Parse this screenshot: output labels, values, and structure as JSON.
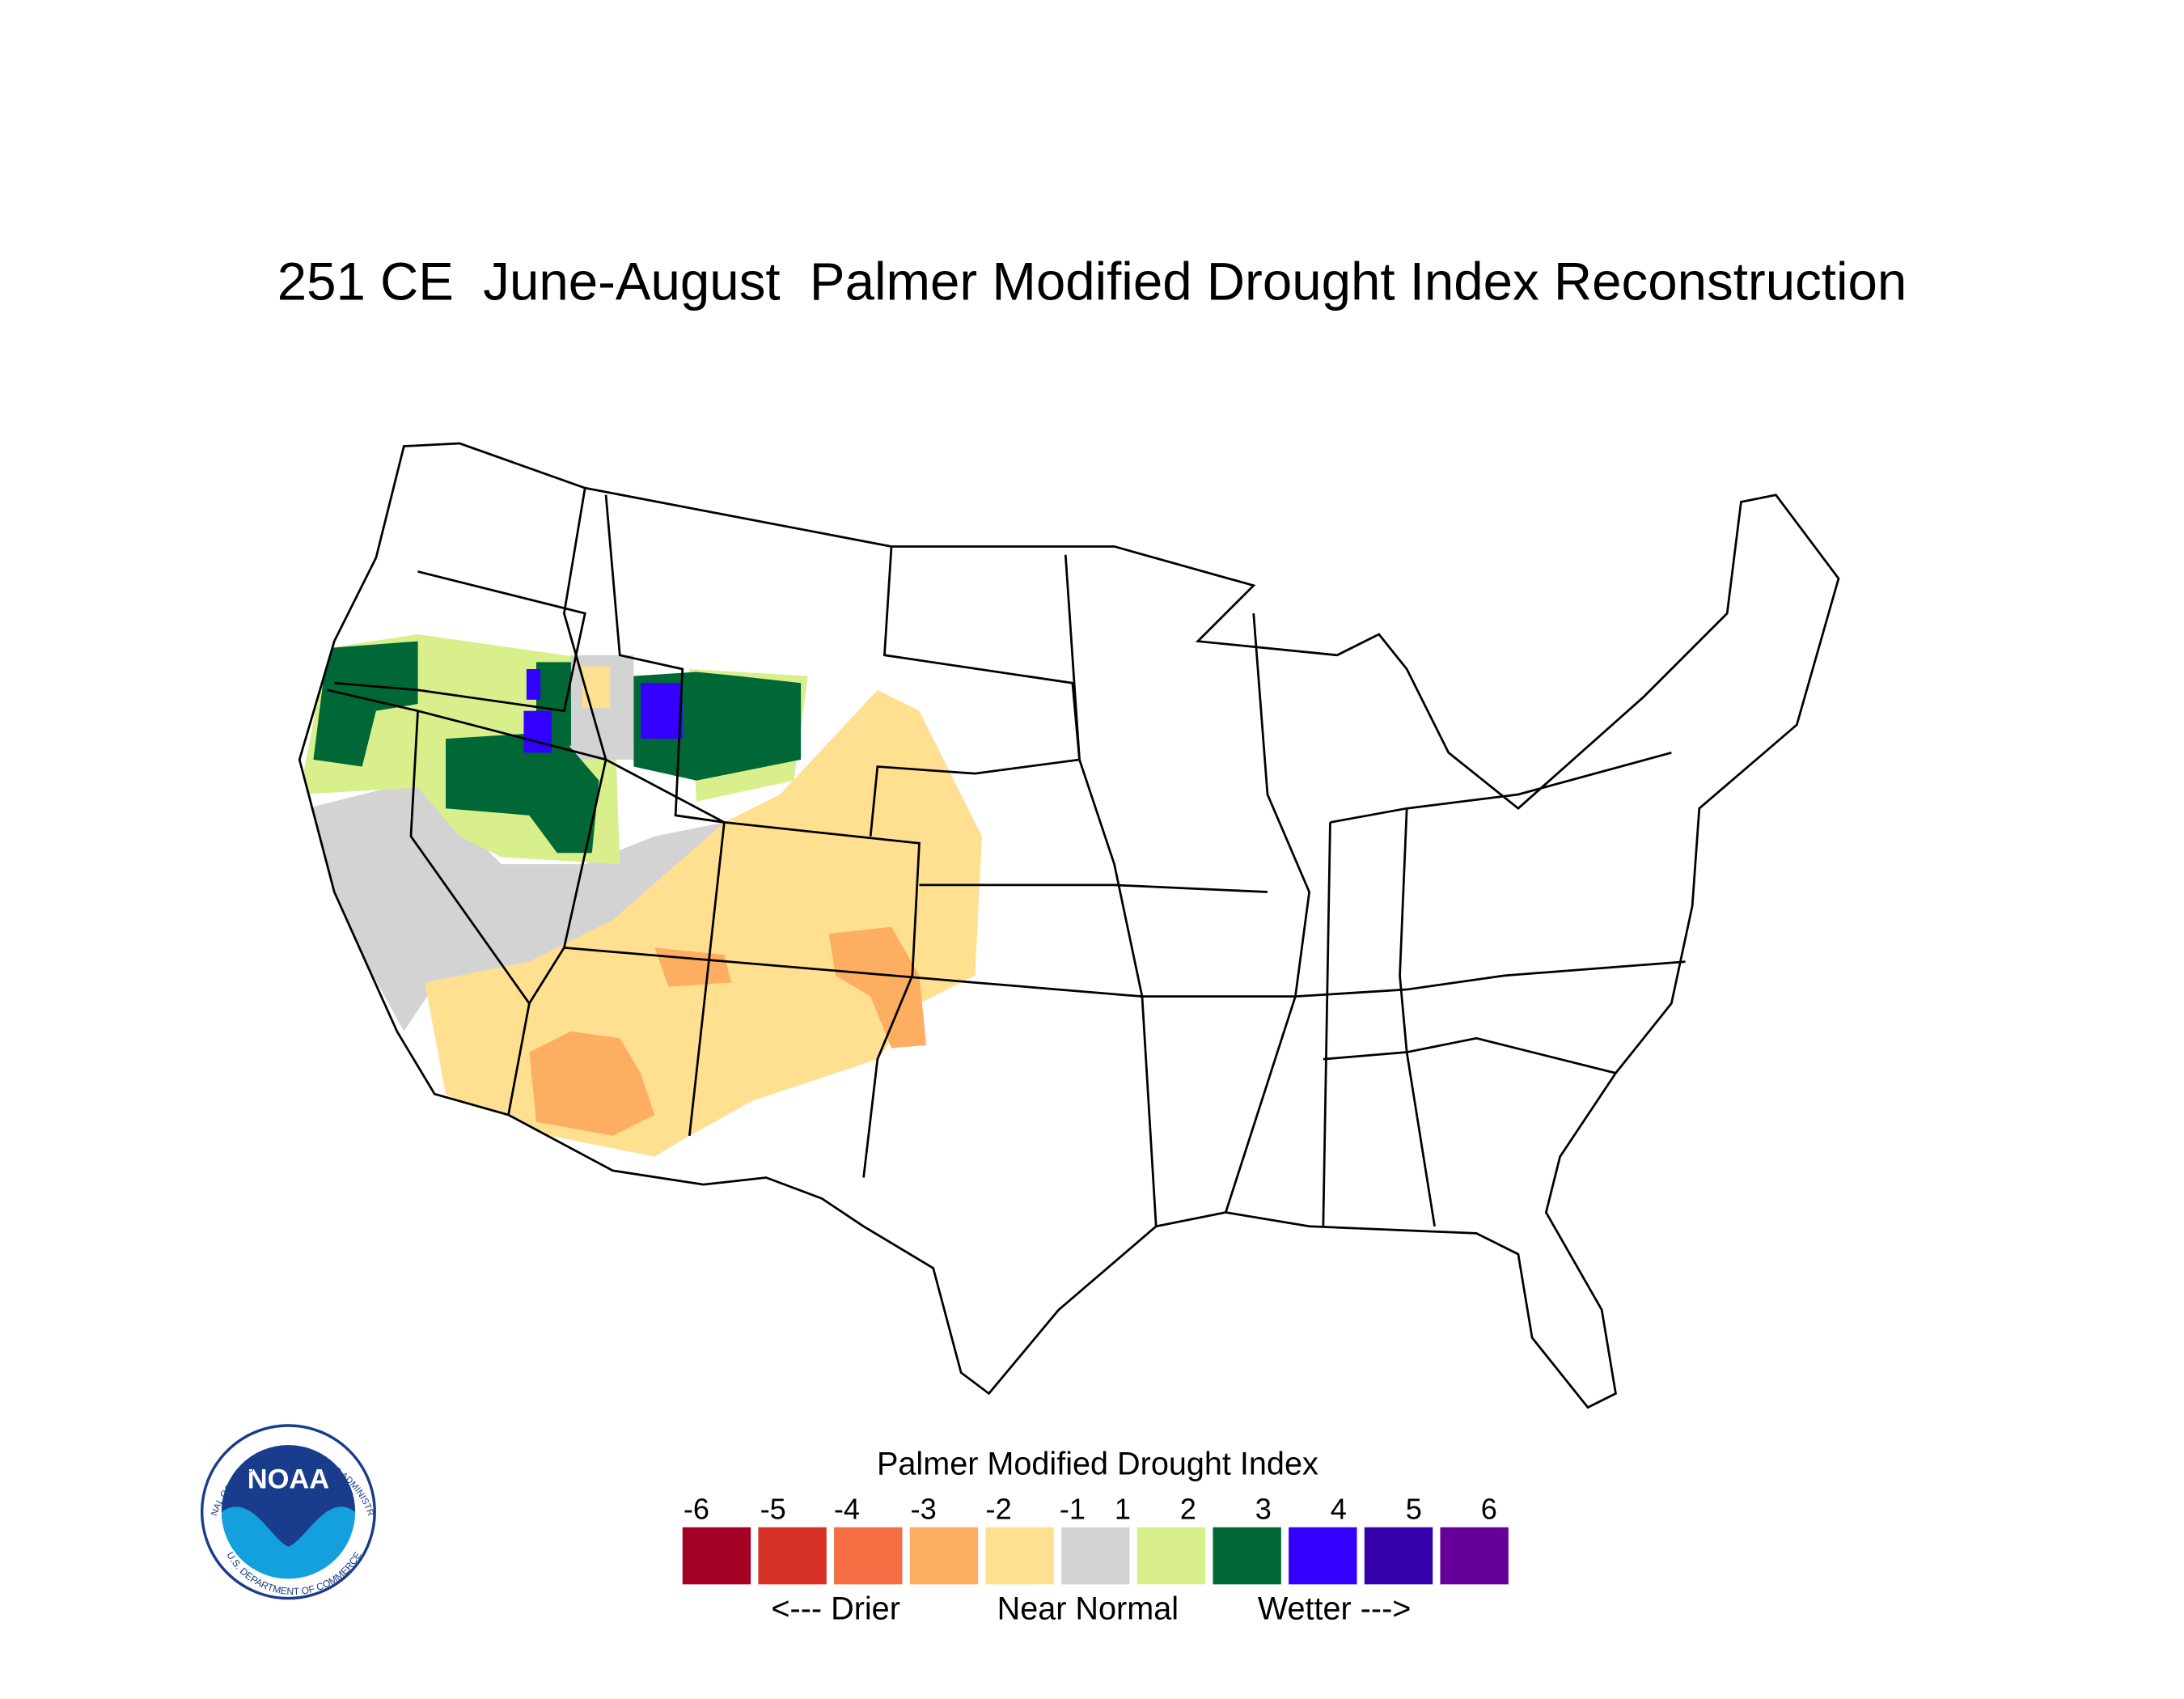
{
  "header": {
    "title": "251 CE  June-August  Palmer Modified Drought Index Reconstruction"
  },
  "legend": {
    "title": "Palmer Modified Drought Index",
    "ticks": [
      "-6",
      "-5",
      "-4",
      "-3",
      "-2",
      "-1",
      "1",
      "2",
      "3",
      "4",
      "5",
      "6"
    ],
    "colors": [
      "#a50026",
      "#d73027",
      "#f46d43",
      "#fdae61",
      "#fee090",
      "#d3d3d3",
      "#d9ef8b",
      "#006837",
      "#3300ff",
      "#3300aa",
      "#660099"
    ],
    "labels": [
      "<--- Drier",
      "Near Normal",
      "Wetter --->"
    ]
  },
  "logo": {
    "text": "NOAA",
    "ring_top": "NATIONAL OCEANIC AND ATMOSPHERIC ADMINISTRATION",
    "ring_bottom": "U.S. DEPARTMENT OF COMMERCE"
  }
}
